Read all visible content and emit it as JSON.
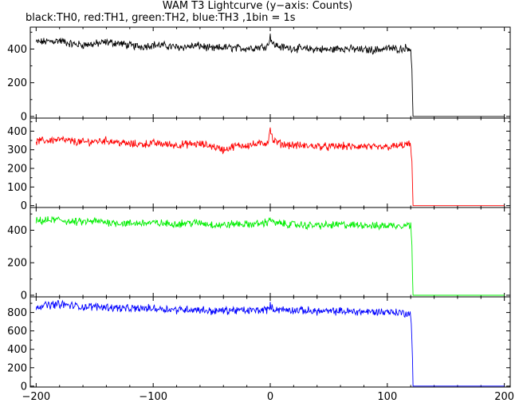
{
  "chart_data": {
    "type": "line",
    "title": "WAM T3 Lightcurve (y−axis: Counts)",
    "subtitle": "black:TH0, red:TH1, green:TH2, blue:TH3 ,1bin = 1s",
    "xlabel": "",
    "ylabel": "",
    "xlim": [
      -205,
      205
    ],
    "x_ticks": [
      "−200",
      "−100",
      "0",
      "100",
      "200"
    ],
    "x_tick_values": [
      -200,
      -100,
      0,
      100,
      200
    ],
    "grid": false,
    "series": [
      {
        "color": "#000000",
        "ylim": [
          -10,
          530
        ],
        "y_ticks": [
          "0",
          "200",
          "400"
        ],
        "y_tick_values": [
          0,
          200,
          400
        ],
        "x": [
          -200,
          -190,
          -180,
          -170,
          -160,
          -150,
          -140,
          -130,
          -120,
          -110,
          -100,
          -90,
          -80,
          -70,
          -60,
          -50,
          -40,
          -30,
          -20,
          -10,
          -2,
          0,
          2,
          10,
          20,
          30,
          40,
          50,
          60,
          70,
          80,
          90,
          100,
          110,
          118,
          120,
          121,
          122,
          130,
          150,
          175,
          200
        ],
        "values": [
          440,
          445,
          450,
          430,
          425,
          430,
          440,
          435,
          420,
          415,
          425,
          420,
          410,
          415,
          420,
          400,
          410,
          405,
          405,
          410,
          420,
          480,
          430,
          410,
          405,
          400,
          400,
          395,
          405,
          400,
          395,
          395,
          405,
          400,
          410,
          400,
          260,
          0,
          0,
          0,
          0,
          0
        ]
      },
      {
        "color": "#ff0000",
        "ylim": [
          -10,
          470
        ],
        "y_ticks": [
          "0",
          "100",
          "200",
          "300",
          "400"
        ],
        "y_tick_values": [
          0,
          100,
          200,
          300,
          400
        ],
        "x": [
          -200,
          -190,
          -180,
          -170,
          -160,
          -150,
          -140,
          -130,
          -120,
          -110,
          -100,
          -90,
          -80,
          -70,
          -60,
          -50,
          -40,
          -30,
          -20,
          -10,
          -2,
          0,
          2,
          10,
          20,
          30,
          40,
          50,
          60,
          70,
          80,
          90,
          100,
          110,
          118,
          120,
          121,
          122,
          130,
          150,
          175,
          200
        ],
        "values": [
          345,
          350,
          355,
          345,
          340,
          345,
          350,
          340,
          330,
          330,
          335,
          330,
          325,
          330,
          330,
          320,
          300,
          320,
          325,
          330,
          340,
          420,
          350,
          330,
          325,
          320,
          320,
          315,
          320,
          315,
          320,
          310,
          315,
          320,
          330,
          325,
          220,
          0,
          0,
          0,
          0,
          0
        ]
      },
      {
        "color": "#00ee00",
        "ylim": [
          -10,
          540
        ],
        "y_ticks": [
          "0",
          "200",
          "400"
        ],
        "y_tick_values": [
          0,
          200,
          400
        ],
        "x": [
          -200,
          -190,
          -180,
          -170,
          -160,
          -150,
          -140,
          -130,
          -120,
          -110,
          -100,
          -90,
          -80,
          -70,
          -60,
          -50,
          -40,
          -30,
          -20,
          -10,
          -2,
          0,
          2,
          10,
          20,
          30,
          40,
          50,
          60,
          70,
          80,
          90,
          100,
          110,
          118,
          120,
          121,
          122,
          130,
          150,
          175,
          200
        ],
        "values": [
          455,
          460,
          465,
          450,
          450,
          455,
          450,
          445,
          440,
          445,
          445,
          440,
          440,
          445,
          445,
          435,
          430,
          440,
          435,
          440,
          450,
          480,
          445,
          440,
          435,
          430,
          430,
          430,
          435,
          430,
          435,
          425,
          430,
          430,
          435,
          425,
          300,
          0,
          0,
          0,
          0,
          0
        ]
      },
      {
        "color": "#0000ff",
        "ylim": [
          -10,
          970
        ],
        "y_ticks": [
          "0",
          "200",
          "400",
          "600",
          "800"
        ],
        "y_tick_values": [
          0,
          200,
          400,
          600,
          800
        ],
        "x": [
          -200,
          -190,
          -180,
          -170,
          -160,
          -150,
          -140,
          -130,
          -120,
          -110,
          -100,
          -90,
          -80,
          -70,
          -60,
          -50,
          -40,
          -30,
          -20,
          -10,
          -2,
          0,
          2,
          10,
          20,
          30,
          40,
          50,
          60,
          70,
          80,
          90,
          100,
          110,
          118,
          120,
          121,
          122,
          130,
          150,
          175,
          200
        ],
        "values": [
          870,
          880,
          890,
          875,
          860,
          865,
          860,
          850,
          840,
          845,
          845,
          840,
          830,
          835,
          830,
          815,
          820,
          825,
          820,
          825,
          835,
          870,
          840,
          830,
          825,
          820,
          815,
          810,
          815,
          810,
          810,
          805,
          810,
          800,
          790,
          780,
          530,
          0,
          0,
          0,
          0,
          0
        ]
      }
    ]
  }
}
